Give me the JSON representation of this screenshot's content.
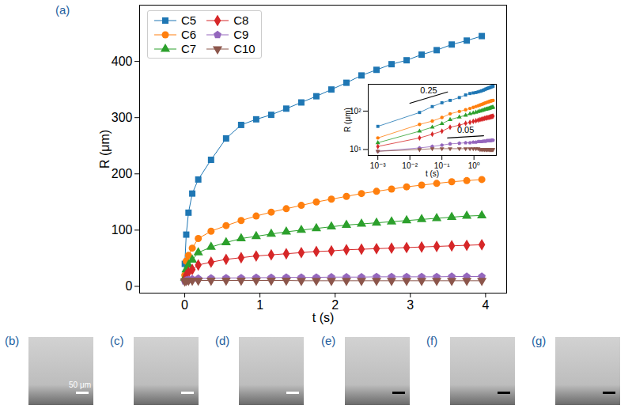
{
  "chart_data": {
    "type": "line",
    "panel": "(a)",
    "xlabel": "t (s)",
    "ylabel": "R (μm)",
    "xlim": [
      -0.6,
      4.28
    ],
    "ylim": [
      -12,
      500
    ],
    "xticks": [
      0,
      1,
      2,
      3,
      4
    ],
    "yticks": [
      0,
      100,
      200,
      300,
      400
    ],
    "legend": "upper left",
    "x": [
      0.001,
      0.02,
      0.05,
      0.1,
      0.18,
      0.35,
      0.55,
      0.75,
      0.95,
      1.15,
      1.35,
      1.55,
      1.75,
      1.95,
      2.15,
      2.35,
      2.55,
      2.75,
      2.95,
      3.15,
      3.35,
      3.55,
      3.75,
      3.95
    ],
    "series": [
      {
        "name": "C5",
        "color": "#1f77b4",
        "marker": "square",
        "values": [
          40,
          92,
          131,
          165,
          190,
          225,
          263,
          287,
          297,
          305,
          316,
          327,
          338,
          350,
          362,
          375,
          385,
          395,
          402,
          412,
          420,
          430,
          437,
          445
        ]
      },
      {
        "name": "C6",
        "color": "#ff7f0e",
        "marker": "circle",
        "values": [
          20,
          45,
          55,
          68,
          85,
          98,
          108,
          117,
          125,
          132,
          138,
          144,
          150,
          155,
          160,
          165,
          169,
          173,
          177,
          180,
          183,
          186,
          188,
          190
        ]
      },
      {
        "name": "C7",
        "color": "#2ca02c",
        "marker": "triangle_up",
        "values": [
          15,
          30,
          38,
          47,
          60,
          70,
          78,
          85,
          89,
          93,
          97,
          100,
          103,
          106,
          109,
          111,
          113,
          115,
          117,
          119,
          121,
          123,
          125,
          126
        ]
      },
      {
        "name": "C8",
        "color": "#d62728",
        "marker": "diamond",
        "values": [
          12,
          20,
          25,
          30,
          38,
          43,
          48,
          51,
          54,
          56,
          58,
          60,
          62,
          63,
          65,
          66,
          67,
          68,
          69,
          70,
          71,
          72,
          73,
          74
        ]
      },
      {
        "name": "C9",
        "color": "#9467bd",
        "marker": "pentagon",
        "values": [
          9,
          11,
          12,
          13,
          14,
          14.5,
          15,
          15,
          15.5,
          15.5,
          16,
          16,
          16,
          16.5,
          16.5,
          16.5,
          17,
          17,
          17,
          17,
          17,
          17.5,
          17.5,
          17.5
        ]
      },
      {
        "name": "C10",
        "color": "#8c564b",
        "marker": "triangle_down",
        "values": [
          9,
          10,
          10.5,
          10.5,
          10.5,
          10.5,
          10.5,
          10.5,
          10.5,
          10.5,
          10.5,
          10,
          10,
          10,
          10,
          10,
          10,
          10,
          10,
          10,
          10,
          10,
          10,
          10
        ]
      }
    ],
    "inset": {
      "type": "line",
      "log": true,
      "xlabel": "t (s)",
      "ylabel": "R (μm)",
      "xlim": [
        0.0005,
        5
      ],
      "ylim": [
        7,
        500
      ],
      "xticks": [
        {
          "value": 0.001,
          "label": "10⁻³"
        },
        {
          "value": 0.01,
          "label": "10⁻²"
        },
        {
          "value": 0.1,
          "label": "10⁻¹"
        },
        {
          "value": 1,
          "label": "10⁰"
        }
      ],
      "yticks": [
        {
          "value": 10,
          "label": "10¹"
        },
        {
          "value": 100,
          "label": "10²"
        }
      ],
      "guides": [
        {
          "slope": 0.25,
          "x": [
            0.01,
            0.15
          ],
          "y": 160
        },
        {
          "slope": 0.05,
          "x": [
            0.15,
            2
          ],
          "y": 20
        }
      ]
    },
    "photos": [
      {
        "label": "(b)",
        "scale_bar": "50 μm",
        "bar_color": "#ffffff"
      },
      {
        "label": "(c)",
        "bar_color": "#ffffff"
      },
      {
        "label": "(d)",
        "bar_color": "#ffffff"
      },
      {
        "label": "(e)",
        "bar_color": "#000000"
      },
      {
        "label": "(f)",
        "bar_color": "#000000"
      },
      {
        "label": "(g)",
        "bar_color": "#000000"
      }
    ]
  }
}
